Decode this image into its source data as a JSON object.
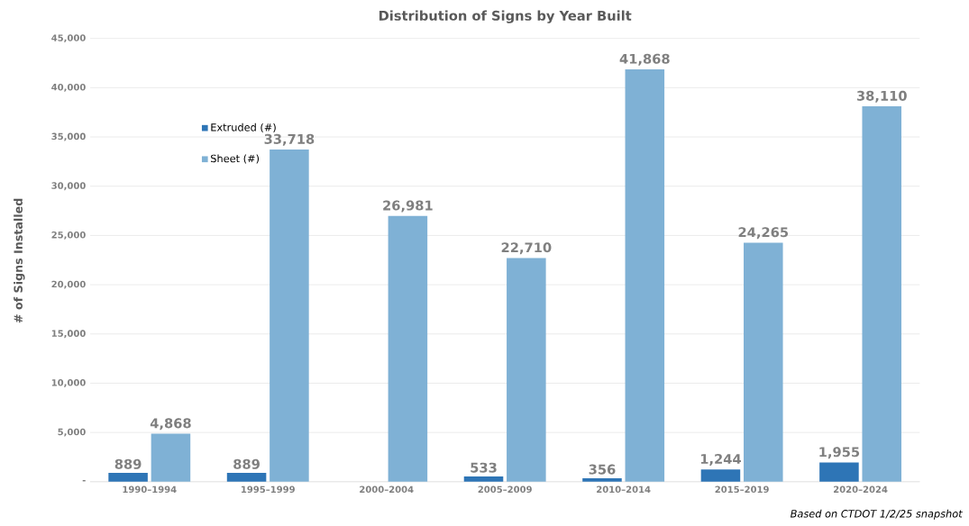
{
  "chart_data": {
    "type": "bar",
    "title": "Distribution of Signs by Year Built",
    "ylabel": "# of Signs Installed",
    "annotations": [
      "Based on CTDOT 1/2/25 snapshot"
    ],
    "categories": [
      "1990–1994",
      "1995–1999",
      "2000–2004",
      "2005–2009",
      "2010–2014",
      "2015–2019",
      "2020–2024"
    ],
    "series": [
      {
        "name": "Extruded (#)",
        "color": "#2e75b6",
        "values": [
          889,
          889,
          null,
          533,
          356,
          1244,
          1955
        ],
        "value_labels": [
          "889",
          "889",
          null,
          "533",
          "356",
          "1,244",
          "1,955"
        ]
      },
      {
        "name": "Sheet (#)",
        "color": "#7fb1d5",
        "values": [
          4868,
          33718,
          26981,
          22710,
          41868,
          24265,
          38110
        ],
        "value_labels": [
          "4,868",
          "33,718",
          "26,981",
          "22,710",
          "41,868",
          "24,265",
          "38,110"
        ]
      }
    ],
    "ylim": [
      0,
      45000
    ],
    "yticks": [
      {
        "value": 0,
        "label": "-"
      },
      {
        "value": 5000,
        "label": "5,000"
      },
      {
        "value": 10000,
        "label": "10,000"
      },
      {
        "value": 15000,
        "label": "15,000"
      },
      {
        "value": 20000,
        "label": "20,000"
      },
      {
        "value": 25000,
        "label": "25,000"
      },
      {
        "value": 30000,
        "label": "30,000"
      },
      {
        "value": 35000,
        "label": "35,000"
      },
      {
        "value": 40000,
        "label": "40,000"
      },
      {
        "value": 45000,
        "label": "45,000"
      }
    ],
    "grid": "y",
    "legend": "top left"
  }
}
